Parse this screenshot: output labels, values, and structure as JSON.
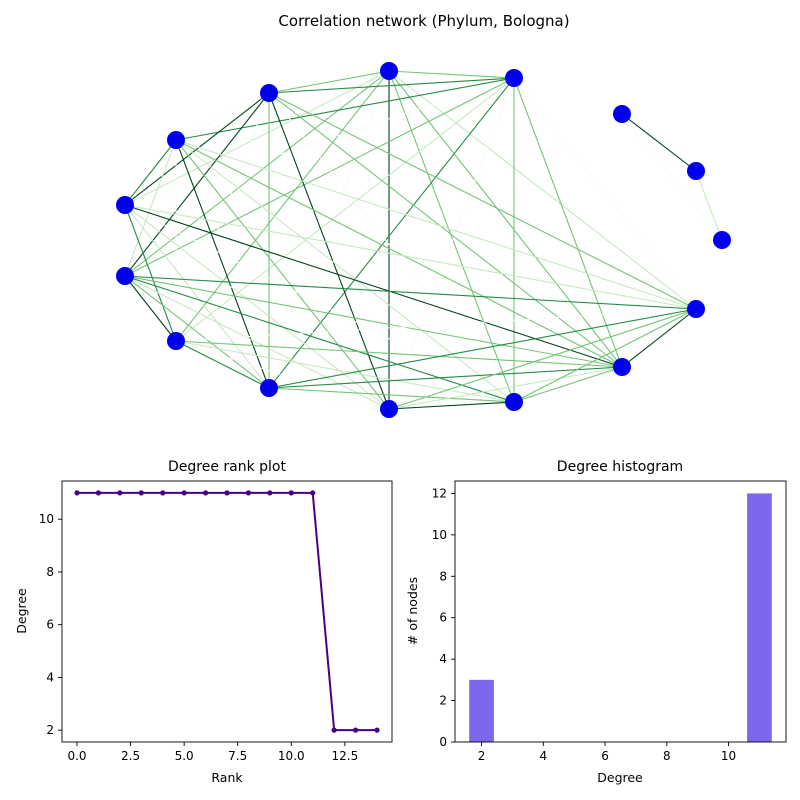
{
  "chart_data": [
    {
      "type": "network",
      "title": "Correlation network (Phylum, Bologna)",
      "node_color": "#0000ee",
      "edge_colormap": [
        "#f7fcf5",
        "#c7e9c0",
        "#74c476",
        "#238b45",
        "#00441b"
      ],
      "nodes": [
        {
          "id": 0,
          "degree": 11
        },
        {
          "id": 1,
          "degree": 11
        },
        {
          "id": 2,
          "degree": 11
        },
        {
          "id": 3,
          "degree": 11
        },
        {
          "id": 4,
          "degree": 11
        },
        {
          "id": 5,
          "degree": 11
        },
        {
          "id": 6,
          "degree": 11
        },
        {
          "id": 7,
          "degree": 11
        },
        {
          "id": 8,
          "degree": 11
        },
        {
          "id": 9,
          "degree": 11
        },
        {
          "id": 10,
          "degree": 11
        },
        {
          "id": 11,
          "degree": 11
        },
        {
          "id": 12,
          "degree": 2
        },
        {
          "id": 13,
          "degree": 2
        },
        {
          "id": 14,
          "degree": 2
        }
      ],
      "groups": [
        {
          "members": [
            0,
            1,
            2,
            3,
            4,
            5,
            6,
            7,
            8,
            9,
            10,
            11
          ],
          "complete": true
        },
        {
          "members": [
            12,
            13,
            14
          ],
          "complete": true
        }
      ]
    },
    {
      "type": "line",
      "title": "Degree rank plot",
      "xlabel": "Rank",
      "ylabel": "Degree",
      "color": "#4b0082",
      "x": [
        0,
        1,
        2,
        3,
        4,
        5,
        6,
        7,
        8,
        9,
        10,
        11,
        12,
        13,
        14
      ],
      "y": [
        11,
        11,
        11,
        11,
        11,
        11,
        11,
        11,
        11,
        11,
        11,
        11,
        2,
        2,
        2
      ],
      "xlim": [
        -0.7,
        14.7
      ],
      "ylim": [
        1.55,
        11.45
      ],
      "xticks": [
        0.0,
        2.5,
        5.0,
        7.5,
        10.0,
        12.5
      ],
      "xtick_labels": [
        "0.0",
        "2.5",
        "5.0",
        "7.5",
        "10.0",
        "12.5"
      ],
      "yticks": [
        2,
        4,
        6,
        8,
        10
      ],
      "ytick_labels": [
        "2",
        "4",
        "6",
        "8",
        "10"
      ]
    },
    {
      "type": "bar",
      "title": "Degree histogram",
      "xlabel": "Degree",
      "ylabel": "# of nodes",
      "color": "#7b68ee",
      "categories": [
        2,
        11
      ],
      "values": [
        3,
        12
      ],
      "bar_width": 0.8,
      "xlim": [
        1.14,
        11.86
      ],
      "ylim": [
        0,
        12.6
      ],
      "xticks": [
        2,
        4,
        6,
        8,
        10
      ],
      "xtick_labels": [
        "2",
        "4",
        "6",
        "8",
        "10"
      ],
      "yticks": [
        0,
        2,
        4,
        6,
        8,
        10,
        12
      ],
      "ytick_labels": [
        "0",
        "2",
        "4",
        "6",
        "8",
        "10",
        "12"
      ]
    }
  ]
}
